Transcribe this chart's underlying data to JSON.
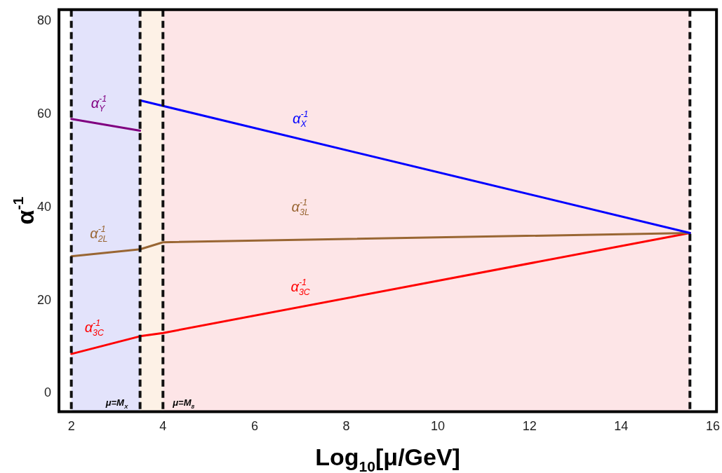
{
  "chart_data": {
    "type": "line",
    "xlabel": "Log$_{10}$[μ/GeV]",
    "ylabel": "α$^{-1}$",
    "xlim": [
      1.73,
      16.08
    ],
    "ylim": [
      -3.9,
      82.5
    ],
    "xticks": [
      2,
      4,
      6,
      8,
      10,
      12,
      14,
      16
    ],
    "yticks": [
      0,
      20,
      40,
      60,
      80
    ],
    "grid": false,
    "legend": false,
    "marker": "none",
    "line_style": "solid",
    "series": [
      {
        "color": "#800080",
        "x": [
          2,
          3.5
        ],
        "values": [
          59,
          56.5
        ]
      },
      {
        "color": "#0000ff",
        "x": [
          3.5,
          15.5
        ],
        "values": [
          63,
          34.5
        ]
      },
      {
        "color": "#996633",
        "x": [
          2,
          3.5,
          4,
          15.5
        ],
        "values": [
          29.5,
          31,
          32.5,
          34.5
        ]
      },
      {
        "color": "#ff0000",
        "x": [
          2,
          3.5,
          4,
          15.5
        ],
        "values": [
          8.5,
          12.3,
          13,
          34.5
        ]
      }
    ],
    "bands": [
      {
        "axis": "x",
        "from": 2,
        "to": 3.5,
        "color": "#e3e3fb"
      },
      {
        "axis": "x",
        "from": 3.5,
        "to": 4,
        "color": "#fdf1e6"
      },
      {
        "axis": "x",
        "from": 4,
        "to": 15.5,
        "color": "#fde5e7"
      }
    ],
    "ref_lines": [
      {
        "axis": "x",
        "value": 2,
        "color": "#111111",
        "line_style": "dashed"
      },
      {
        "axis": "x",
        "value": 3.5,
        "label": "μ=M$_{X}$",
        "color": "#111111",
        "line_style": "dashed"
      },
      {
        "axis": "x",
        "value": 4,
        "label": "μ=M$_{8}$",
        "color": "#111111",
        "line_style": "dashed"
      },
      {
        "axis": "x",
        "value": 15.5,
        "color": "#111111",
        "line_style": "dashed"
      }
    ],
    "annotations": [
      {
        "text": "α$^{-1}$$_{Y}$",
        "x": 2.6,
        "y": 58
      },
      {
        "text": "α$^{-1}$$_{X}$",
        "x": 7,
        "y": 54.7
      },
      {
        "text": "α$^{-1}$$_{3L}$",
        "x": 7,
        "y": 33
      },
      {
        "text": "α$^{-1}$$_{2L}$",
        "x": 2.6,
        "y": 30.1
      },
      {
        "text": "α$^{-1}$$_{3C}$",
        "x": 2.5,
        "y": 9.8
      },
      {
        "text": "α$^{-1}$$_{3C}$",
        "x": 7,
        "y": 18.6
      }
    ]
  }
}
